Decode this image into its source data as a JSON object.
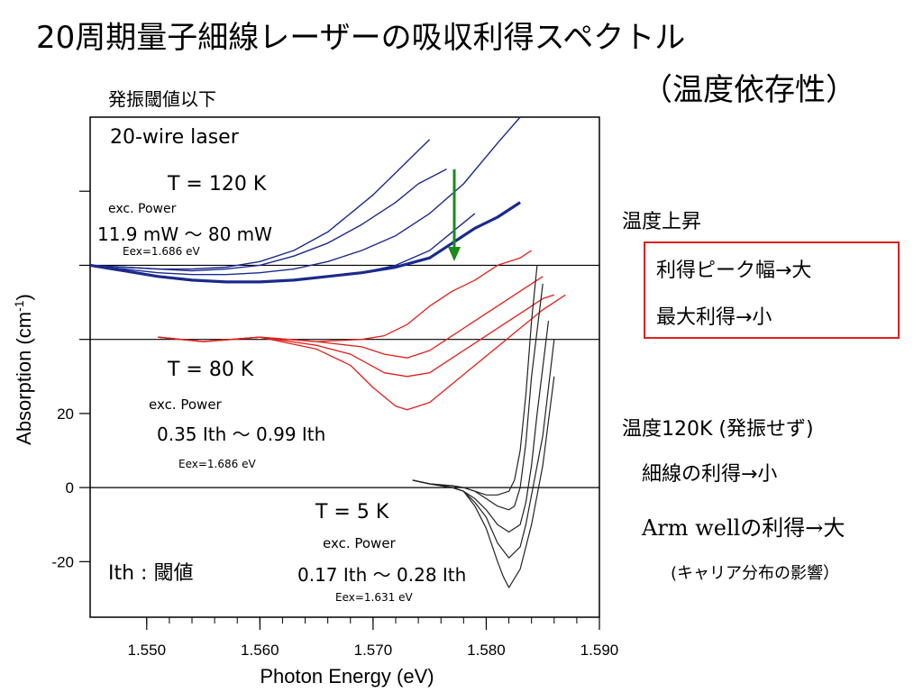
{
  "header": {
    "title_line1": "20周期量子細線レーザーの吸収利得スペクトル",
    "title_line2": "（温度依存性）",
    "subtitle": "発振閾値以下"
  },
  "annotations": {
    "sample": "20-wire laser",
    "t120": "T = 120 K",
    "t120_exc": "exc. Power",
    "t120_power": "11.9 mW ～ 80 mW",
    "t120_eex": "Eex=1.686 eV",
    "t80": "T = 80 K",
    "t80_exc": "exc. Power",
    "t80_power": "0.35 Ith ～ 0.99 Ith",
    "t80_eex": "Eex=1.686 eV",
    "t5": "T = 5 K",
    "t5_exc": "exc. Power",
    "t5_power": "0.17 Ith ～ 0.28 Ith",
    "t5_eex": "Eex=1.631 eV",
    "ith_label": "Ith : 閾値"
  },
  "side_notes": {
    "temp_rise": "温度上昇",
    "box_line1": "利得ピーク幅→大",
    "box_line2": "最大利得→小",
    "temp120": "温度120K (発振せず)",
    "wire_gain": "細線の利得→小",
    "arm_gain": "Arm wellの利得→大",
    "carrier": "(キャリア分布の影響）"
  },
  "colors": {
    "t120": "#1a2a8c",
    "t80": "#e0201a",
    "t5": "#222222",
    "arrow": "#1a8a1a",
    "box": "#e02020"
  },
  "chart_data": {
    "type": "line",
    "title": "",
    "xlabel": "Photon Energy (eV)",
    "ylabel": "Absorption (cm-1)",
    "xlim": [
      1.545,
      1.59
    ],
    "ylim": [
      -35,
      100
    ],
    "xticks": [
      "1.550",
      "1.560",
      "1.570",
      "1.580",
      "1.590"
    ],
    "yticks": [
      "-20",
      "0",
      "20"
    ],
    "baselines": [
      0,
      40,
      60
    ],
    "series": [
      {
        "group": "T = 120 K",
        "offset": 60,
        "color": "#1a2a8c",
        "width": 1.4,
        "x": [
          1.545,
          1.548,
          1.551,
          1.554,
          1.557,
          1.56,
          1.563,
          1.566,
          1.568,
          1.57,
          1.572,
          1.574,
          1.575
        ],
        "y": [
          0,
          -0.5,
          -1,
          -1,
          -0.5,
          1,
          4,
          9,
          14,
          19,
          25,
          31,
          34
        ]
      },
      {
        "group": "T = 120 K",
        "offset": 60,
        "color": "#1a2a8c",
        "width": 1.4,
        "x": [
          1.545,
          1.548,
          1.551,
          1.554,
          1.557,
          1.56,
          1.563,
          1.566,
          1.569,
          1.572,
          1.574,
          1.5765
        ],
        "y": [
          0,
          -0.5,
          -1,
          -1.5,
          -1,
          0,
          2.5,
          6,
          11,
          17,
          22,
          26
        ]
      },
      {
        "group": "T = 120 K",
        "offset": 60,
        "color": "#1a2a8c",
        "width": 1.4,
        "x": [
          1.545,
          1.548,
          1.551,
          1.554,
          1.557,
          1.56,
          1.563,
          1.566,
          1.569,
          1.572,
          1.575,
          1.578,
          1.581,
          1.583
        ],
        "y": [
          0,
          -1,
          -2,
          -2.5,
          -2.5,
          -2,
          -1,
          1,
          4,
          8,
          14,
          22,
          33,
          40
        ]
      },
      {
        "group": "T = 120 K",
        "offset": 60,
        "color": "#1a2a8c",
        "width": 1.4,
        "x": [
          1.545,
          1.548,
          1.551,
          1.554,
          1.557,
          1.56,
          1.563,
          1.566,
          1.569,
          1.572,
          1.575,
          1.577,
          1.579
        ],
        "y": [
          0,
          -1.5,
          -3,
          -4,
          -4.5,
          -4.5,
          -4,
          -3,
          -2,
          0,
          4,
          9,
          14
        ]
      },
      {
        "group": "T = 120 K",
        "offset": 60,
        "color": "#1a2a8c",
        "width": 3.2,
        "x": [
          1.545,
          1.548,
          1.551,
          1.554,
          1.557,
          1.56,
          1.563,
          1.566,
          1.569,
          1.572,
          1.575,
          1.577,
          1.579,
          1.581,
          1.583
        ],
        "y": [
          0,
          -1.5,
          -3,
          -4,
          -4.5,
          -4.5,
          -4,
          -3,
          -2,
          -0.5,
          2,
          6,
          10,
          13,
          17
        ]
      },
      {
        "group": "T = 80 K",
        "offset": 40,
        "color": "#e0201a",
        "width": 1.3,
        "x": [
          1.551,
          1.555,
          1.56,
          1.565,
          1.569,
          1.571,
          1.573,
          1.575,
          1.577,
          1.579,
          1.581,
          1.583,
          1.584
        ],
        "y": [
          0,
          0,
          0,
          0,
          0,
          1,
          4,
          9,
          13,
          16,
          20,
          22,
          24
        ]
      },
      {
        "group": "T = 80 K",
        "offset": 40,
        "color": "#e0201a",
        "width": 1.3,
        "x": [
          1.551,
          1.555,
          1.56,
          1.565,
          1.569,
          1.571,
          1.573,
          1.575,
          1.577,
          1.579,
          1.581,
          1.583,
          1.585
        ],
        "y": [
          0,
          0,
          0,
          0,
          -2,
          -4,
          -5,
          -3,
          1,
          5,
          9,
          13,
          17
        ]
      },
      {
        "group": "T = 80 K",
        "offset": 40,
        "color": "#e0201a",
        "width": 1.3,
        "x": [
          1.551,
          1.555,
          1.56,
          1.565,
          1.568,
          1.571,
          1.573,
          1.575,
          1.577,
          1.579,
          1.581,
          1.583,
          1.585,
          1.586
        ],
        "y": [
          0,
          0,
          0,
          -1,
          -4,
          -9,
          -10,
          -9,
          -5,
          -1,
          3,
          7,
          11,
          12
        ]
      },
      {
        "group": "T = 80 K",
        "offset": 40,
        "color": "#e0201a",
        "width": 1.3,
        "x": [
          1.551,
          1.555,
          1.56,
          1.565,
          1.568,
          1.57,
          1.572,
          1.573,
          1.575,
          1.577,
          1.579,
          1.581,
          1.583,
          1.585,
          1.587
        ],
        "y": [
          0,
          0,
          0,
          -2,
          -7,
          -13,
          -18,
          -19,
          -17,
          -12,
          -7,
          -2,
          3,
          8,
          12
        ]
      },
      {
        "group": "T = 5 K",
        "offset": 0,
        "color": "#222222",
        "width": 1.2,
        "x": [
          1.5735,
          1.575,
          1.577,
          1.578,
          1.579,
          1.58,
          1.581,
          1.582,
          1.5825,
          1.583,
          1.5835,
          1.584,
          1.5845
        ],
        "y": [
          2,
          1,
          0.5,
          0,
          -1,
          -2,
          -2,
          -1,
          2,
          10,
          25,
          45,
          60
        ]
      },
      {
        "group": "T = 5 K",
        "offset": 0,
        "color": "#222222",
        "width": 1.2,
        "x": [
          1.5735,
          1.575,
          1.577,
          1.578,
          1.579,
          1.58,
          1.581,
          1.582,
          1.5825,
          1.583,
          1.5835,
          1.584,
          1.585
        ],
        "y": [
          2,
          1,
          0.5,
          0,
          -1,
          -3,
          -5,
          -6,
          -5,
          0,
          12,
          30,
          55
        ]
      },
      {
        "group": "T = 5 K",
        "offset": 0,
        "color": "#222222",
        "width": 1.2,
        "x": [
          1.5735,
          1.575,
          1.577,
          1.578,
          1.579,
          1.58,
          1.581,
          1.582,
          1.583,
          1.5835,
          1.584,
          1.5845,
          1.5855
        ],
        "y": [
          2,
          1,
          0,
          -1,
          -3,
          -6,
          -10,
          -12,
          -10,
          -4,
          6,
          20,
          45
        ]
      },
      {
        "group": "T = 5 K",
        "offset": 0,
        "color": "#222222",
        "width": 1.2,
        "x": [
          1.5735,
          1.575,
          1.577,
          1.578,
          1.579,
          1.58,
          1.581,
          1.582,
          1.583,
          1.5835,
          1.584,
          1.585,
          1.586
        ],
        "y": [
          2,
          1,
          0,
          -1,
          -4,
          -8,
          -15,
          -19,
          -16,
          -10,
          -2,
          14,
          40
        ]
      },
      {
        "group": "T = 5 K",
        "offset": 0,
        "color": "#222222",
        "width": 1.2,
        "x": [
          1.5735,
          1.575,
          1.577,
          1.578,
          1.579,
          1.58,
          1.581,
          1.5815,
          1.582,
          1.583,
          1.584,
          1.585,
          1.586
        ],
        "y": [
          2,
          1,
          0,
          -1,
          -5,
          -11,
          -20,
          -24,
          -27,
          -22,
          -10,
          6,
          30
        ]
      }
    ]
  }
}
